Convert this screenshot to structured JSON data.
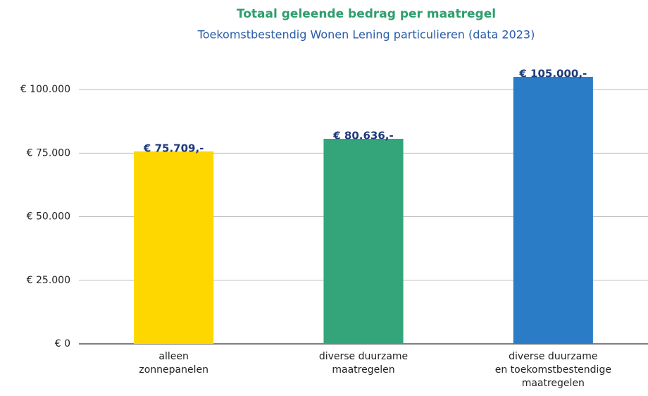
{
  "chart_data": {
    "type": "bar",
    "title": "Totaal geleende bedrag per maatregel",
    "subtitle": "Toekomstbestendig Wonen Lening particulieren (data 2023)",
    "categories": [
      "alleen\nzonnepanelen",
      "diverse duurzame\nmaatregelen",
      "diverse duurzame\nen toekomstbestendige\nmaatregelen"
    ],
    "values": [
      75709,
      80636,
      105000
    ],
    "value_labels": [
      "€ 75.709,-",
      "€ 80.636,-",
      "€ 105.000,-"
    ],
    "colors": [
      "#ffd700",
      "#34a57a",
      "#2a7cc7"
    ],
    "ylim": [
      0,
      110000
    ],
    "yticks": [
      {
        "value": 0,
        "label": "€ 0"
      },
      {
        "value": 25000,
        "label": "€ 25.000"
      },
      {
        "value": 50000,
        "label": "€ 50.000"
      },
      {
        "value": 75000,
        "label": "€ 75.000"
      },
      {
        "value": 100000,
        "label": "€ 100.000"
      }
    ],
    "grid": true
  }
}
